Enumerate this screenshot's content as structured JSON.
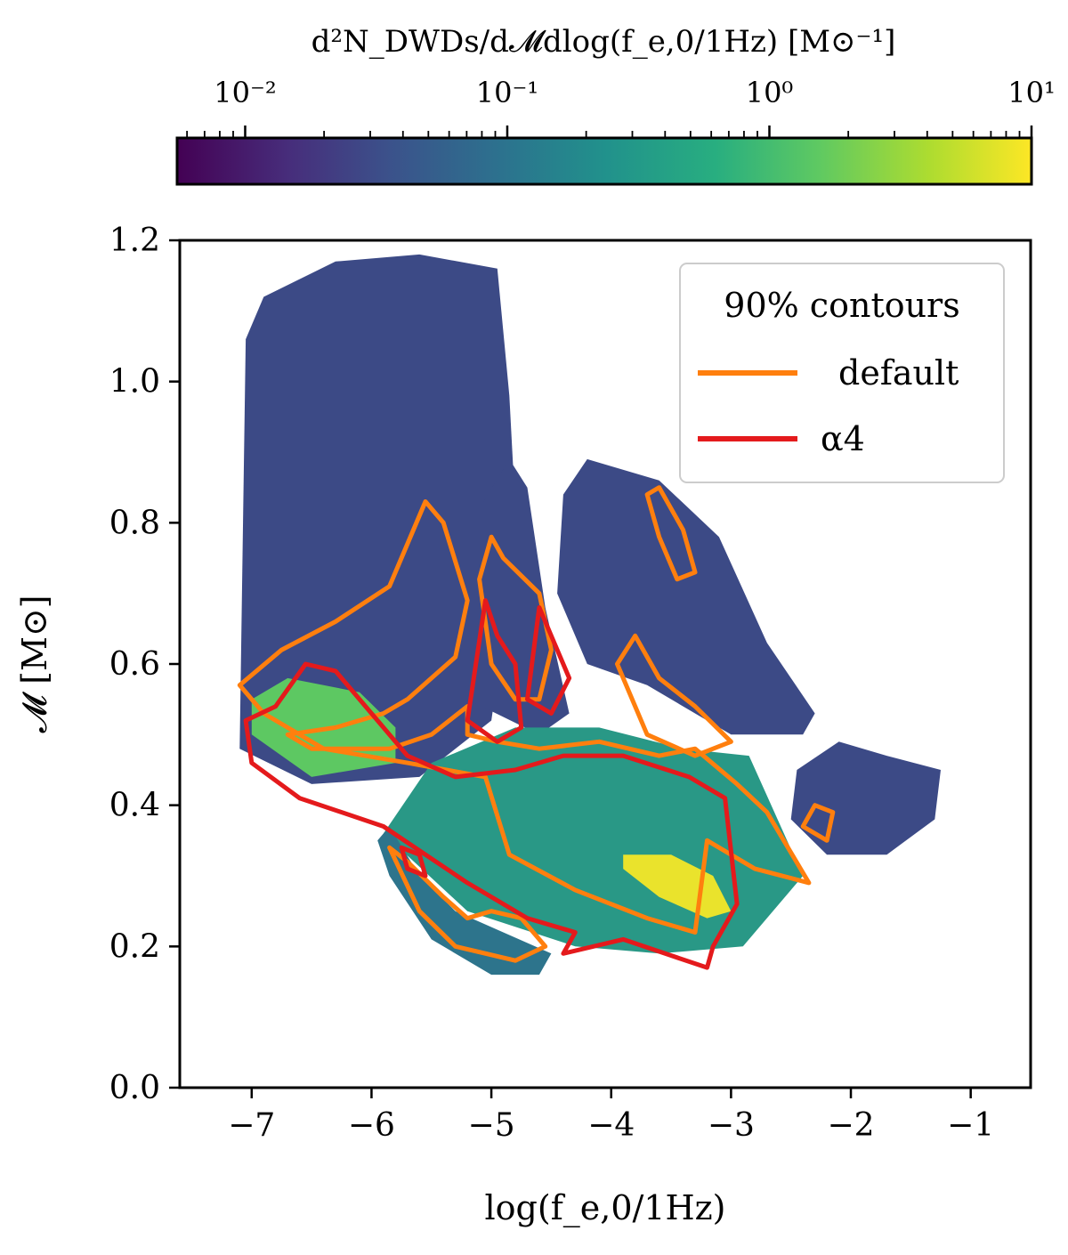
{
  "chart_data": {
    "type": "heatmap",
    "title": "",
    "xlabel": "log(f_e,0/1Hz)",
    "ylabel": "𝓜 [M⊙]",
    "xlim": [
      -7.6,
      -0.5
    ],
    "ylim": [
      0.0,
      1.2
    ],
    "x_ticks": [
      -7,
      -6,
      -5,
      -4,
      -3,
      -2,
      -1
    ],
    "x_tick_labels": [
      "−7",
      "−6",
      "−5",
      "−4",
      "−3",
      "−2",
      "−1"
    ],
    "y_ticks": [
      0.0,
      0.2,
      0.4,
      0.6,
      0.8,
      1.0,
      1.2
    ],
    "y_tick_labels": [
      "0.0",
      "0.2",
      "0.4",
      "0.6",
      "0.8",
      "1.0",
      "1.2"
    ],
    "colorbar": {
      "label": "d²N_DWDs/d𝓜dlog(f_e,0/1Hz) [M⊙⁻¹]",
      "scale": "log",
      "range": [
        0.0055,
        10
      ],
      "ticks": [
        0.01,
        0.1,
        1,
        10
      ],
      "tick_labels": [
        "10⁻²",
        "10⁻¹",
        "10⁰",
        "10¹"
      ],
      "colormap": "viridis",
      "colors": [
        "#440154",
        "#3b528b",
        "#21918c",
        "#5ec962",
        "#fde725"
      ]
    },
    "density_regions": [
      {
        "name": "left band",
        "level": 0.03,
        "points": [
          [
            -7.1,
            0.48
          ],
          [
            -7.05,
            1.06
          ],
          [
            -6.9,
            1.12
          ],
          [
            -6.3,
            1.17
          ],
          [
            -5.6,
            1.18
          ],
          [
            -4.95,
            1.16
          ],
          [
            -4.85,
            0.98
          ],
          [
            -4.8,
            0.82
          ],
          [
            -4.85,
            0.7
          ],
          [
            -5.0,
            0.52
          ],
          [
            -5.6,
            0.44
          ],
          [
            -6.5,
            0.43
          ],
          [
            -7.1,
            0.48
          ]
        ]
      },
      {
        "name": "middle strip",
        "level": 0.03,
        "points": [
          [
            -5.2,
            0.55
          ],
          [
            -5.1,
            0.82
          ],
          [
            -4.85,
            0.89
          ],
          [
            -4.7,
            0.85
          ],
          [
            -4.55,
            0.68
          ],
          [
            -4.35,
            0.53
          ],
          [
            -4.6,
            0.5
          ],
          [
            -5.2,
            0.55
          ]
        ]
      },
      {
        "name": "right strip",
        "level": 0.03,
        "points": [
          [
            -4.45,
            0.7
          ],
          [
            -4.4,
            0.84
          ],
          [
            -4.2,
            0.89
          ],
          [
            -3.6,
            0.86
          ],
          [
            -3.1,
            0.78
          ],
          [
            -2.7,
            0.63
          ],
          [
            -2.3,
            0.53
          ],
          [
            -2.4,
            0.5
          ],
          [
            -3.0,
            0.5
          ],
          [
            -3.7,
            0.57
          ],
          [
            -4.2,
            0.6
          ],
          [
            -4.45,
            0.7
          ]
        ]
      },
      {
        "name": "right island",
        "level": 0.03,
        "points": [
          [
            -2.5,
            0.38
          ],
          [
            -2.45,
            0.45
          ],
          [
            -2.1,
            0.49
          ],
          [
            -1.7,
            0.47
          ],
          [
            -1.25,
            0.45
          ],
          [
            -1.3,
            0.38
          ],
          [
            -1.7,
            0.33
          ],
          [
            -2.2,
            0.33
          ],
          [
            -2.5,
            0.38
          ]
        ]
      },
      {
        "name": "central body",
        "level": 0.3,
        "points": [
          [
            -5.5,
            0.46
          ],
          [
            -4.8,
            0.51
          ],
          [
            -4.1,
            0.51
          ],
          [
            -3.4,
            0.48
          ],
          [
            -2.85,
            0.47
          ],
          [
            -2.4,
            0.3
          ],
          [
            -2.9,
            0.2
          ],
          [
            -3.6,
            0.19
          ],
          [
            -4.3,
            0.2
          ],
          [
            -5.2,
            0.25
          ],
          [
            -5.9,
            0.36
          ],
          [
            -5.5,
            0.46
          ]
        ]
      },
      {
        "name": "left core",
        "level": 1.5,
        "points": [
          [
            -7.0,
            0.55
          ],
          [
            -6.7,
            0.58
          ],
          [
            -6.1,
            0.56
          ],
          [
            -5.8,
            0.51
          ],
          [
            -5.8,
            0.46
          ],
          [
            -6.5,
            0.44
          ],
          [
            -7.0,
            0.5
          ],
          [
            -7.0,
            0.55
          ]
        ]
      },
      {
        "name": "lower band",
        "level": 0.1,
        "points": [
          [
            -5.95,
            0.35
          ],
          [
            -5.85,
            0.37
          ],
          [
            -5.6,
            0.3
          ],
          [
            -5.3,
            0.25
          ],
          [
            -4.9,
            0.22
          ],
          [
            -4.5,
            0.19
          ],
          [
            -4.6,
            0.16
          ],
          [
            -5.0,
            0.16
          ],
          [
            -5.5,
            0.21
          ],
          [
            -5.85,
            0.3
          ],
          [
            -5.95,
            0.35
          ]
        ]
      },
      {
        "name": "bright core",
        "level": 8,
        "points": [
          [
            -3.9,
            0.33
          ],
          [
            -3.5,
            0.33
          ],
          [
            -3.15,
            0.3
          ],
          [
            -3.0,
            0.25
          ],
          [
            -3.2,
            0.24
          ],
          [
            -3.6,
            0.27
          ],
          [
            -3.9,
            0.31
          ],
          [
            -3.9,
            0.33
          ]
        ]
      }
    ],
    "legend": {
      "title": "90% contours",
      "placement": "upper right",
      "entries": [
        {
          "label": "default",
          "color": "#ff7f0e"
        },
        {
          "label": "α4",
          "color": "#e41a1c"
        }
      ]
    },
    "series": [
      {
        "name": "default",
        "color": "#ff7f0e",
        "contours": [
          [
            [
              -7.1,
              0.57
            ],
            [
              -6.75,
              0.62
            ],
            [
              -6.3,
              0.66
            ],
            [
              -5.85,
              0.71
            ],
            [
              -5.55,
              0.83
            ],
            [
              -5.4,
              0.8
            ],
            [
              -5.2,
              0.69
            ],
            [
              -5.3,
              0.61
            ],
            [
              -5.7,
              0.55
            ],
            [
              -5.9,
              0.53
            ],
            [
              -6.3,
              0.51
            ],
            [
              -6.7,
              0.5
            ],
            [
              -6.5,
              0.48
            ],
            [
              -5.85,
              0.48
            ],
            [
              -5.5,
              0.5
            ],
            [
              -5.2,
              0.54
            ],
            [
              -5.2,
              0.5
            ],
            [
              -4.95,
              0.49
            ],
            [
              -4.6,
              0.48
            ],
            [
              -4.1,
              0.49
            ],
            [
              -3.6,
              0.47
            ],
            [
              -3.3,
              0.48
            ],
            [
              -2.95,
              0.43
            ],
            [
              -2.7,
              0.39
            ],
            [
              -2.35,
              0.29
            ],
            [
              -2.8,
              0.31
            ],
            [
              -3.2,
              0.35
            ],
            [
              -3.3,
              0.22
            ],
            [
              -3.7,
              0.24
            ],
            [
              -4.3,
              0.28
            ],
            [
              -4.85,
              0.33
            ],
            [
              -5.05,
              0.44
            ],
            [
              -5.7,
              0.46
            ],
            [
              -6.4,
              0.48
            ],
            [
              -6.9,
              0.53
            ],
            [
              -7.1,
              0.57
            ]
          ],
          [
            [
              -5.1,
              0.72
            ],
            [
              -5.0,
              0.78
            ],
            [
              -4.9,
              0.75
            ],
            [
              -4.6,
              0.7
            ],
            [
              -4.5,
              0.62
            ],
            [
              -4.6,
              0.55
            ],
            [
              -4.8,
              0.55
            ],
            [
              -5.0,
              0.6
            ],
            [
              -5.1,
              0.72
            ]
          ],
          [
            [
              -3.95,
              0.6
            ],
            [
              -3.8,
              0.64
            ],
            [
              -3.6,
              0.58
            ],
            [
              -3.3,
              0.54
            ],
            [
              -3.0,
              0.49
            ],
            [
              -3.3,
              0.47
            ],
            [
              -3.7,
              0.5
            ],
            [
              -3.95,
              0.6
            ]
          ],
          [
            [
              -3.7,
              0.84
            ],
            [
              -3.6,
              0.85
            ],
            [
              -3.4,
              0.79
            ],
            [
              -3.3,
              0.73
            ],
            [
              -3.45,
              0.72
            ],
            [
              -3.6,
              0.78
            ],
            [
              -3.7,
              0.84
            ]
          ],
          [
            [
              -5.85,
              0.34
            ],
            [
              -5.7,
              0.32
            ],
            [
              -5.4,
              0.27
            ],
            [
              -5.2,
              0.24
            ],
            [
              -5.0,
              0.25
            ],
            [
              -4.75,
              0.24
            ],
            [
              -4.55,
              0.2
            ],
            [
              -4.8,
              0.18
            ],
            [
              -5.3,
              0.2
            ],
            [
              -5.6,
              0.25
            ],
            [
              -5.85,
              0.34
            ]
          ],
          [
            [
              -2.4,
              0.37
            ],
            [
              -2.3,
              0.4
            ],
            [
              -2.15,
              0.39
            ],
            [
              -2.2,
              0.35
            ],
            [
              -2.4,
              0.37
            ]
          ]
        ]
      },
      {
        "name": "α4",
        "color": "#e41a1c",
        "contours": [
          [
            [
              -7.0,
              0.46
            ],
            [
              -7.05,
              0.52
            ],
            [
              -6.8,
              0.54
            ],
            [
              -6.55,
              0.6
            ],
            [
              -6.3,
              0.59
            ],
            [
              -6.0,
              0.53
            ],
            [
              -5.7,
              0.47
            ],
            [
              -5.3,
              0.44
            ],
            [
              -4.8,
              0.45
            ],
            [
              -4.4,
              0.47
            ],
            [
              -3.9,
              0.47
            ],
            [
              -3.35,
              0.44
            ],
            [
              -3.05,
              0.41
            ],
            [
              -2.95,
              0.26
            ],
            [
              -3.15,
              0.2
            ],
            [
              -3.2,
              0.17
            ],
            [
              -3.55,
              0.19
            ],
            [
              -3.9,
              0.21
            ],
            [
              -4.4,
              0.19
            ],
            [
              -4.3,
              0.22
            ],
            [
              -4.7,
              0.24
            ],
            [
              -5.2,
              0.29
            ],
            [
              -5.9,
              0.37
            ],
            [
              -6.6,
              0.41
            ],
            [
              -7.0,
              0.46
            ]
          ],
          [
            [
              -5.2,
              0.52
            ],
            [
              -5.05,
              0.69
            ],
            [
              -4.95,
              0.64
            ],
            [
              -4.8,
              0.6
            ],
            [
              -4.75,
              0.51
            ],
            [
              -4.95,
              0.49
            ],
            [
              -5.2,
              0.52
            ]
          ],
          [
            [
              -4.7,
              0.55
            ],
            [
              -4.6,
              0.68
            ],
            [
              -4.5,
              0.64
            ],
            [
              -4.35,
              0.58
            ],
            [
              -4.5,
              0.53
            ],
            [
              -4.7,
              0.55
            ]
          ],
          [
            [
              -5.75,
              0.34
            ],
            [
              -5.6,
              0.33
            ],
            [
              -5.55,
              0.3
            ],
            [
              -5.7,
              0.31
            ],
            [
              -5.75,
              0.34
            ]
          ]
        ]
      }
    ]
  }
}
